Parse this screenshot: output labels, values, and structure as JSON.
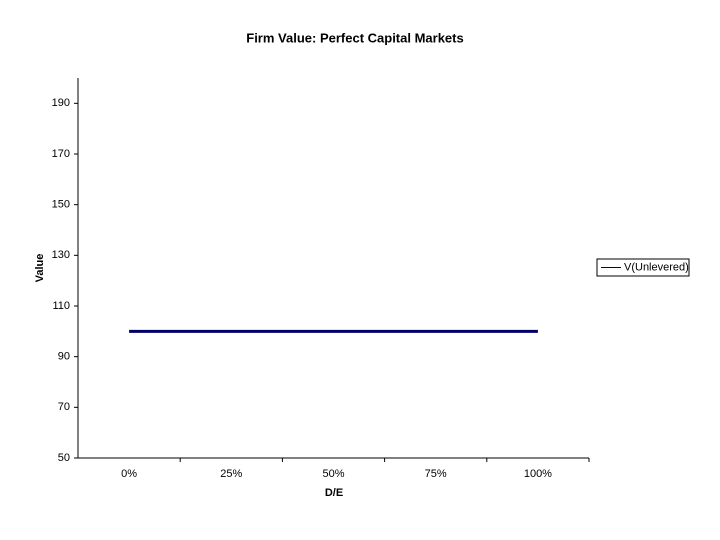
{
  "chart_data": {
    "type": "line",
    "title": "Firm Value:  Perfect Capital Markets",
    "x_label": "D/E",
    "y_label": "Value",
    "categories": [
      "0%",
      "25%",
      "50%",
      "75%",
      "100%"
    ],
    "series": [
      {
        "name": "V(Unlevered)",
        "color": "#000066",
        "values": [
          100,
          100,
          100,
          100,
          100
        ]
      }
    ],
    "ylim": [
      50,
      200
    ],
    "yticks": [
      50,
      70,
      90,
      110,
      130,
      150,
      170,
      190
    ],
    "grid": false,
    "legend": "right"
  }
}
